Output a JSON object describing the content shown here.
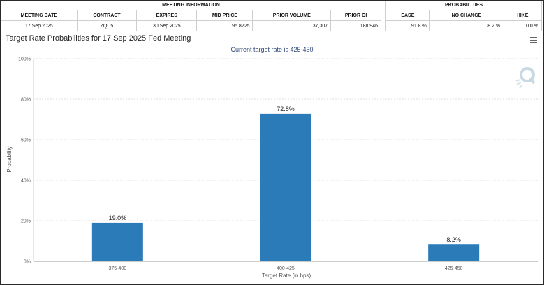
{
  "meeting_info": {
    "header": "MEETING INFORMATION",
    "columns": [
      "MEETING DATE",
      "CONTRACT",
      "EXPIRES",
      "MID PRICE",
      "PRIOR VOLUME",
      "PRIOR OI"
    ],
    "row": [
      "17 Sep 2025",
      "ZQU5",
      "30 Sep 2025",
      "95.8225",
      "37,307",
      "188,946"
    ]
  },
  "probabilities": {
    "header": "PROBABILITIES",
    "columns": [
      "EASE",
      "NO CHANGE",
      "HIKE"
    ],
    "row": [
      "91.8 %",
      "8.2 %",
      "0.0 %"
    ]
  },
  "chart_data": {
    "type": "bar",
    "title": "Target Rate Probabilities for 17 Sep 2025 Fed Meeting",
    "subtitle": "Current target rate is 425-450",
    "xlabel": "Target Rate (in bps)",
    "ylabel": "Probability",
    "categories": [
      "375-400",
      "400-425",
      "425-450"
    ],
    "values": [
      19.0,
      72.8,
      8.2
    ],
    "value_labels": [
      "19.0%",
      "72.8%",
      "8.2%"
    ],
    "ylim": [
      0,
      100
    ],
    "yticks": [
      0,
      20,
      40,
      60,
      80,
      100
    ],
    "ytick_labels": [
      "0%",
      "20%",
      "40%",
      "60%",
      "80%",
      "100%"
    ],
    "grid": true,
    "bar_color": "#2b7bb9"
  },
  "icons": {
    "menu": "hamburger-menu-icon",
    "watermark": "q-logo-icon"
  }
}
